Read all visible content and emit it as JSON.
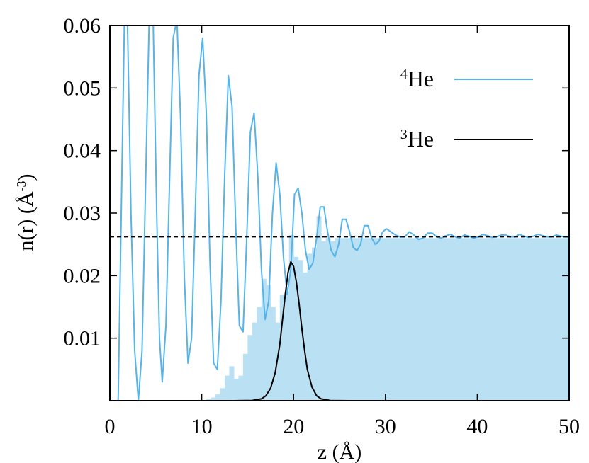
{
  "chart_data": {
    "type": "line",
    "xlabel": "z (Å)",
    "ylabel": "n(r) (Å-3)",
    "ylabel_parts": {
      "main": "n(r) (",
      "unit": "Å",
      "sup": "-3",
      "close": ")"
    },
    "xlabel_parts": {
      "main": "z (",
      "unit": "Å",
      "close": ")"
    },
    "xlim": [
      0,
      50
    ],
    "ylim": [
      0,
      0.06
    ],
    "x_ticks": [
      0,
      10,
      20,
      30,
      40,
      50
    ],
    "x_tick_labels": [
      "0",
      "10",
      "20",
      "30",
      "40",
      "50"
    ],
    "y_ticks": [
      0.01,
      0.02,
      0.03,
      0.04,
      0.05,
      0.06
    ],
    "y_tick_labels": [
      "0.01",
      "0.02",
      "0.03",
      "0.04",
      "0.05",
      "0.06"
    ],
    "bulk_density_reference": 0.0262,
    "legend_position": "top-right",
    "series": [
      {
        "name": "4He",
        "legend_sup": "4",
        "legend_main": "He",
        "color": "#56b4e9",
        "kind": "line",
        "x": [
          0.9,
          1.3,
          1.6,
          1.9,
          2.3,
          2.7,
          3.1,
          3.5,
          3.9,
          4.3,
          4.7,
          5.1,
          5.4,
          5.7,
          6.1,
          6.5,
          6.9,
          7.3,
          7.7,
          8.1,
          8.5,
          8.9,
          9.3,
          9.7,
          10.1,
          10.5,
          10.9,
          11.3,
          11.7,
          12.1,
          12.5,
          12.9,
          13.3,
          13.7,
          14.1,
          14.5,
          14.9,
          15.3,
          15.7,
          16.1,
          16.5,
          16.9,
          17.3,
          17.7,
          18.1,
          18.5,
          18.9,
          19.3,
          19.7,
          20.1,
          20.5,
          20.9,
          21.3,
          21.7,
          22.1,
          22.5,
          22.9,
          23.3,
          23.7,
          24.1,
          24.5,
          24.9,
          25.3,
          25.7,
          26.1,
          26.5,
          26.9,
          27.3,
          27.7,
          28.1,
          28.5,
          28.9,
          29.3,
          29.7,
          30.1,
          30.6,
          31.1,
          31.6,
          32.1,
          32.6,
          33.1,
          33.6,
          34.1,
          34.6,
          35.1,
          35.6,
          36.1,
          36.6,
          37.1,
          37.6,
          38.1,
          38.6,
          39.1,
          39.6,
          40.1,
          40.6,
          41.1,
          41.6,
          42.1,
          42.6,
          43.1,
          43.6,
          44.1,
          44.6,
          45.1,
          45.6,
          46.1,
          46.6,
          47.1,
          47.6,
          48.1,
          48.6,
          49.1,
          49.6,
          50.0
        ],
        "y": [
          0.0,
          0.035,
          0.062,
          0.062,
          0.03,
          0.008,
          0.0,
          0.008,
          0.035,
          0.062,
          0.062,
          0.03,
          0.01,
          0.003,
          0.012,
          0.035,
          0.058,
          0.061,
          0.045,
          0.02,
          0.006,
          0.01,
          0.03,
          0.052,
          0.058,
          0.046,
          0.022,
          0.006,
          0.005,
          0.016,
          0.036,
          0.052,
          0.047,
          0.028,
          0.012,
          0.011,
          0.026,
          0.043,
          0.046,
          0.036,
          0.021,
          0.013,
          0.016,
          0.03,
          0.038,
          0.033,
          0.023,
          0.017,
          0.021,
          0.033,
          0.034,
          0.03,
          0.024,
          0.021,
          0.022,
          0.026,
          0.031,
          0.031,
          0.027,
          0.024,
          0.023,
          0.025,
          0.029,
          0.029,
          0.027,
          0.0245,
          0.024,
          0.025,
          0.028,
          0.028,
          0.026,
          0.025,
          0.0255,
          0.027,
          0.0275,
          0.027,
          0.0265,
          0.0262,
          0.0262,
          0.027,
          0.0265,
          0.0258,
          0.026,
          0.0268,
          0.0268,
          0.0262,
          0.026,
          0.0264,
          0.0266,
          0.0262,
          0.026,
          0.0265,
          0.0263,
          0.026,
          0.0262,
          0.0266,
          0.0264,
          0.0261,
          0.0262,
          0.0265,
          0.0265,
          0.0262,
          0.0262,
          0.0266,
          0.0263,
          0.0261,
          0.0263,
          0.0266,
          0.0264,
          0.0262,
          0.0262,
          0.0265,
          0.0263,
          0.0262,
          0.0262
        ]
      },
      {
        "name": "3He",
        "legend_sup": "3",
        "legend_main": "He",
        "color": "#000000",
        "kind": "line",
        "x": [
          9.5,
          13.5,
          15.5,
          16.5,
          17.0,
          17.5,
          18.0,
          18.5,
          18.8,
          19.1,
          19.4,
          19.7,
          20.0,
          20.3,
          20.6,
          20.9,
          21.2,
          21.5,
          22.0,
          22.5,
          23.0,
          24.0,
          26.0
        ],
        "y": [
          0.0,
          0.0,
          5e-05,
          0.0003,
          0.0008,
          0.002,
          0.0045,
          0.009,
          0.013,
          0.017,
          0.0205,
          0.0222,
          0.0215,
          0.019,
          0.0155,
          0.0115,
          0.008,
          0.005,
          0.0022,
          0.0008,
          0.0003,
          3e-05,
          0.0
        ]
      }
    ],
    "histogram": {
      "color": "#b9e0f3",
      "bins_x": [
        10.0,
        10.5,
        11.0,
        11.5,
        12.0,
        12.5,
        13.0,
        13.5,
        14.0,
        14.5,
        15.0,
        15.5,
        16.0,
        16.5,
        17.0,
        17.5,
        18.0,
        18.5,
        19.0,
        19.5,
        20.0,
        20.5,
        21.0,
        21.5,
        22.0,
        22.5,
        23.0,
        23.5,
        24.0,
        24.5,
        25.0,
        30.0,
        40.0,
        50.0
      ],
      "values": [
        0.0001,
        0.0003,
        0.0005,
        0.001,
        0.002,
        0.004,
        0.0055,
        0.0035,
        0.004,
        0.0075,
        0.0105,
        0.0125,
        0.015,
        0.0195,
        0.0185,
        0.015,
        0.0125,
        0.017,
        0.0175,
        0.0265,
        0.023,
        0.0225,
        0.0205,
        0.0235,
        0.0245,
        0.0295,
        0.0255,
        0.026,
        0.0255,
        0.026,
        0.026,
        0.026,
        0.026
      ]
    }
  }
}
